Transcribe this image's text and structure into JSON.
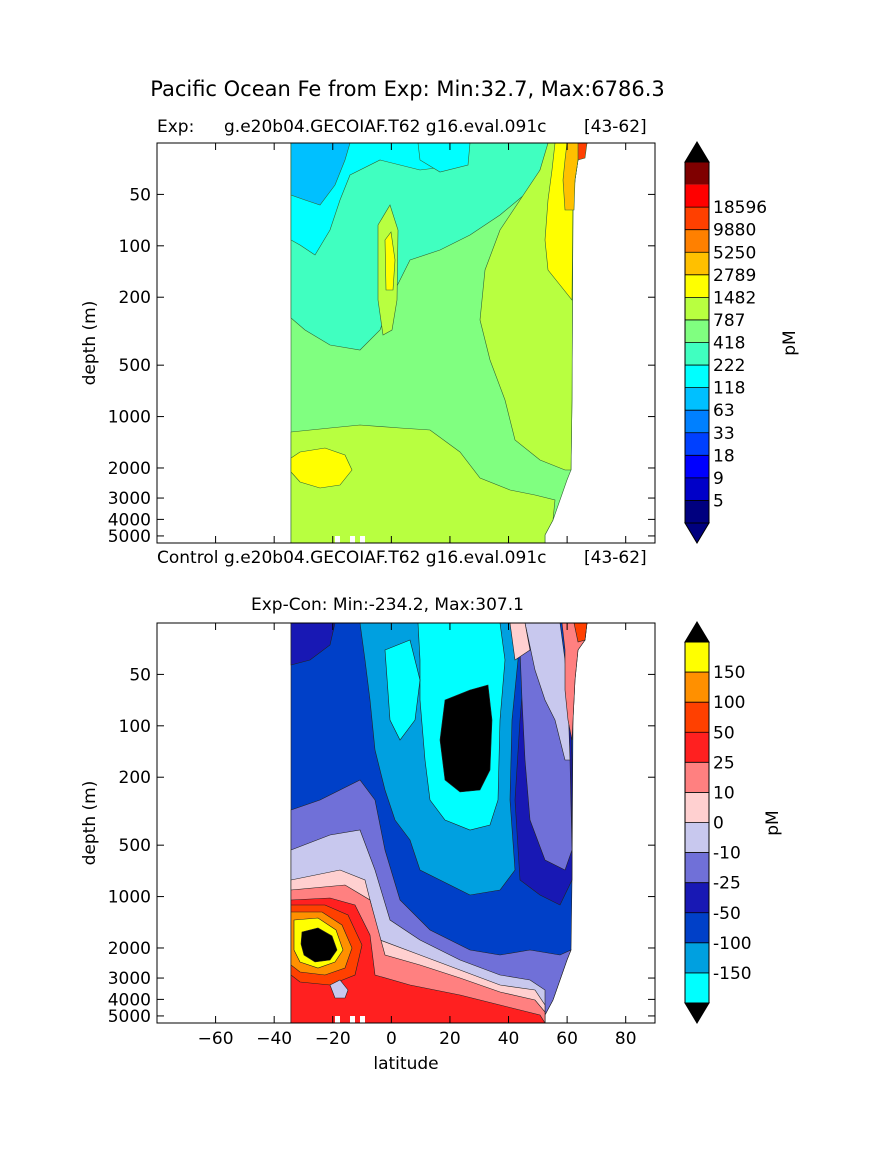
{
  "figure": {
    "title": "Pacific Ocean Fe from Exp: Min:32.7, Max:6786.3"
  },
  "panels": {
    "top": {
      "left_title": "Exp:",
      "center_title": "g.e20b04.GECOIAF.T62 g16.eval.091c",
      "right_title": "[43-62]",
      "ylabel": "depth (m)",
      "bottom_left": "Control",
      "bottom_center": "g.e20b04.GECOIAF.T62 g16.eval.091c",
      "bottom_right": "[43-62]"
    },
    "bottom": {
      "title": "Exp-Con: Min:-234.2, Max:307.1",
      "ylabel": "depth (m)",
      "xlabel": "latitude"
    }
  },
  "colorbars": {
    "top": {
      "label": "pM",
      "colors": [
        "#00007f",
        "#0000c8",
        "#0000ff",
        "#0040ff",
        "#0080ff",
        "#00c0ff",
        "#00ffff",
        "#40ffc0",
        "#80ff80",
        "#b8ff40",
        "#ffff00",
        "#ffc000",
        "#ff8000",
        "#ff4000",
        "#ff0000",
        "#7f0000"
      ],
      "over_color": "#000000",
      "under_color": "#00007f"
    },
    "bottom": {
      "label": "pM",
      "colors": [
        "#00ffff",
        "#00a0e0",
        "#0040c8",
        "#1818b4",
        "#7070d8",
        "#c8c8ee",
        "#ffd0d0",
        "#ff8080",
        "#ff2020",
        "#ff4000",
        "#ff9000",
        "#ffff00"
      ],
      "over_color": "#000000",
      "under_color": "#000000"
    }
  },
  "chart_data": [
    {
      "type": "heatmap",
      "title": "Pacific Ocean Fe from Exp: Min:32.7, Max:6786.3",
      "subtitle": "g.e20b04.GECOIAF.T62 g16.eval.091c",
      "xlabel": "",
      "ylabel": "depth (m)",
      "xlim": [
        -80,
        90
      ],
      "y_scale": "log",
      "ylim": [
        5500,
        25
      ],
      "yticks": [
        50,
        100,
        200,
        500,
        1000,
        2000,
        3000,
        4000,
        5000
      ],
      "ytick_labels": [
        "50",
        "100",
        "200",
        "500",
        "1000",
        "2000",
        "3000",
        "4000",
        "5000"
      ],
      "data_extent_lat": [
        -34,
        67
      ],
      "colorbar_label": "pM",
      "levels": [
        "5",
        "9",
        "18",
        "33",
        "63",
        "118",
        "222",
        "418",
        "787",
        "1482",
        "2789",
        "5250",
        "9880",
        "18596"
      ],
      "value_min": 32.7,
      "value_max": 6786.3
    },
    {
      "type": "heatmap",
      "title": "Exp-Con: Min:-234.2, Max:307.1",
      "xlabel": "latitude",
      "ylabel": "depth (m)",
      "xlim": [
        -80,
        90
      ],
      "xticks": [
        -60,
        -40,
        -20,
        0,
        20,
        40,
        60,
        80
      ],
      "xtick_labels": [
        "−60",
        "−40",
        "−20",
        "0",
        "20",
        "40",
        "60",
        "80"
      ],
      "y_scale": "log",
      "ylim": [
        5500,
        25
      ],
      "yticks": [
        50,
        100,
        200,
        500,
        1000,
        2000,
        3000,
        4000,
        5000
      ],
      "ytick_labels": [
        "50",
        "100",
        "200",
        "500",
        "1000",
        "2000",
        "3000",
        "4000",
        "5000"
      ],
      "data_extent_lat": [
        -34,
        67
      ],
      "colorbar_label": "pM",
      "levels": [
        "-150",
        "-100",
        "-50",
        "-25",
        "-10",
        "0",
        "10",
        "25",
        "50",
        "100",
        "150"
      ],
      "value_min": -234.2,
      "value_max": 307.1
    }
  ]
}
